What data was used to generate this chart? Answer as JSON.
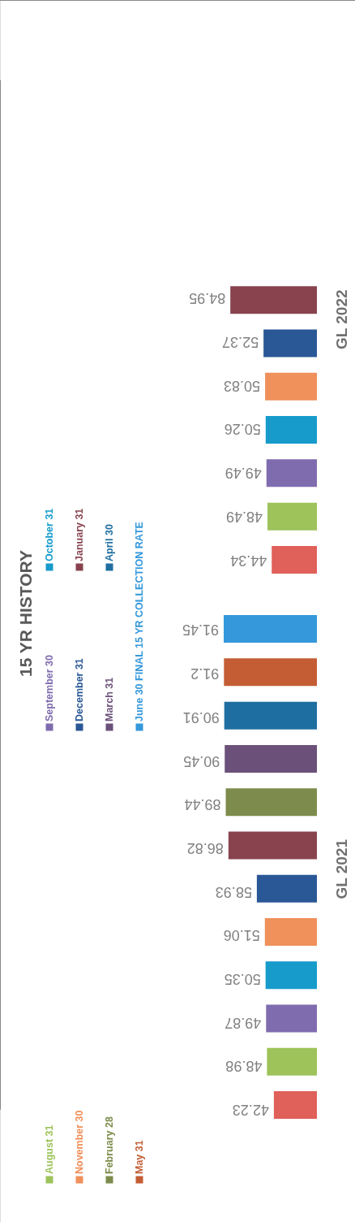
{
  "chart_data": {
    "type": "bar",
    "orientation": "horizontal",
    "title": "15 YR HISTORY",
    "categories": [
      "GL 2022",
      "GL 2021"
    ],
    "series": [
      {
        "color": "#e0605a",
        "values": [
          44.34,
          42.23
        ]
      },
      {
        "name": "August 31",
        "color": "#9dc35a",
        "values": [
          48.49,
          48.98
        ]
      },
      {
        "name": "September 30",
        "color": "#7f6cae",
        "values": [
          49.49,
          49.87
        ]
      },
      {
        "name": "October 31",
        "color": "#169bcb",
        "values": [
          50.26,
          50.35
        ]
      },
      {
        "name": "November 30",
        "color": "#f0905a",
        "values": [
          50.83,
          51.06
        ]
      },
      {
        "name": "December 31",
        "color": "#2a5896",
        "values": [
          52.37,
          58.93
        ]
      },
      {
        "name": "January 31",
        "color": "#88434f",
        "values": [
          84.95,
          86.82
        ]
      },
      {
        "name": "February 28",
        "color": "#7d8c4c",
        "values": [
          null,
          89.44
        ]
      },
      {
        "name": "March 31",
        "color": "#6b5179",
        "values": [
          null,
          90.45
        ]
      },
      {
        "name": "April 30",
        "color": "#1f6ea1",
        "values": [
          null,
          90.91
        ]
      },
      {
        "name": "May 31",
        "color": "#c45d34",
        "values": [
          null,
          91.2
        ]
      },
      {
        "name": "June 30 FINAL 15 YR COLLECTION RATE",
        "color": "#3498db",
        "values": [
          null,
          91.45
        ]
      }
    ],
    "data_labels": true,
    "legend": "left",
    "tick_labels": "y"
  }
}
